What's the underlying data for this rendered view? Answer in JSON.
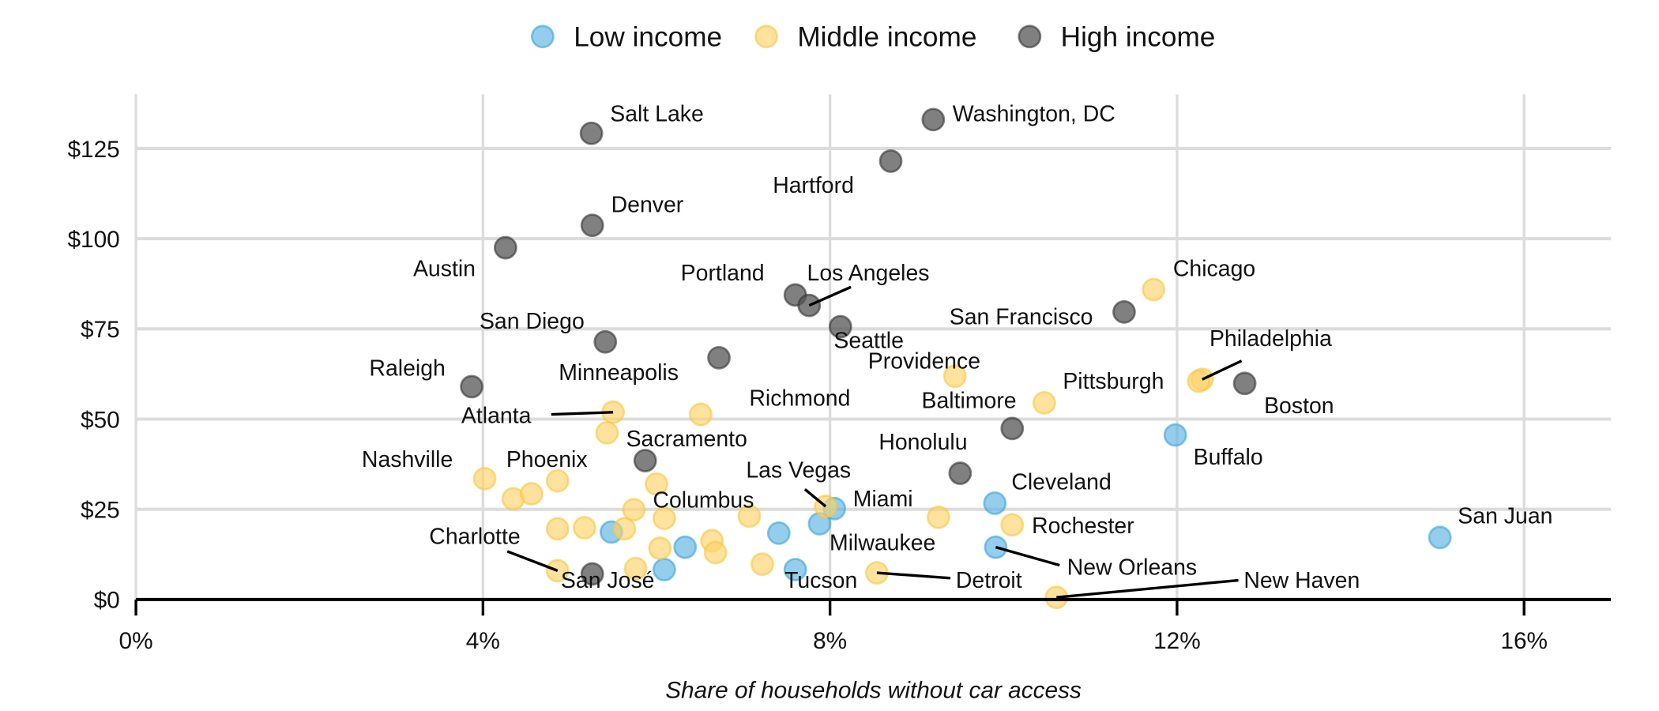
{
  "chart_data": {
    "type": "scatter",
    "title": "",
    "xlabel": "Share of households without car access",
    "ylabel": "",
    "xlim": [
      0,
      17
    ],
    "ylim": [
      0,
      140
    ],
    "x_ticks": [
      0,
      4,
      8,
      12,
      16
    ],
    "x_tick_labels": [
      "0%",
      "4%",
      "8%",
      "12%",
      "16%"
    ],
    "y_ticks": [
      0,
      25,
      50,
      75,
      100,
      125
    ],
    "y_tick_labels": [
      "$0",
      "$25",
      "$50",
      "$75",
      "$100",
      "$125"
    ],
    "grid": true,
    "legend_position": "top",
    "colors": {
      "Low income": "#5ab4e2",
      "Middle income": "#fdd36a",
      "High income": "#555555"
    },
    "series": [
      {
        "name": "Low income",
        "points": [
          {
            "name": "Buffalo",
            "x": 11.98,
            "y": 45.6
          },
          {
            "name": "San Juan",
            "x": 15.03,
            "y": 17.2
          },
          {
            "name": "Cleveland",
            "x": 9.9,
            "y": 26.7
          },
          {
            "name": "Miami",
            "x": 8.05,
            "y": 25.2
          },
          {
            "name": "Milwaukee",
            "x": 7.88,
            "y": 21.0
          },
          {
            "name": "New Orleans",
            "x": 9.91,
            "y": 14.5
          },
          {
            "name": "",
            "x": 7.41,
            "y": 18.4
          },
          {
            "name": "Tucson",
            "x": 7.6,
            "y": 8.3
          },
          {
            "name": "",
            "x": 5.48,
            "y": 18.7
          },
          {
            "name": "",
            "x": 6.33,
            "y": 14.5
          },
          {
            "name": "",
            "x": 6.09,
            "y": 8.3
          }
        ]
      },
      {
        "name": "Middle income",
        "points": [
          {
            "name": "Chicago",
            "x": 11.73,
            "y": 85.9
          },
          {
            "name": "Providence",
            "x": 9.44,
            "y": 61.9
          },
          {
            "name": "Philadelphia",
            "x": 12.29,
            "y": 61.0
          },
          {
            "name": "Pittsburgh",
            "x": 12.25,
            "y": 60.5
          },
          {
            "name": "Baltimore",
            "x": 10.47,
            "y": 54.5
          },
          {
            "name": "Atlanta",
            "x": 5.5,
            "y": 51.9
          },
          {
            "name": "Richmond",
            "x": 6.51,
            "y": 51.3
          },
          {
            "name": "",
            "x": 5.43,
            "y": 46.2
          },
          {
            "name": "Nashville",
            "x": 4.02,
            "y": 33.5
          },
          {
            "name": "Phoenix",
            "x": 4.86,
            "y": 32.9
          },
          {
            "name": "",
            "x": 4.35,
            "y": 27.9
          },
          {
            "name": "",
            "x": 4.56,
            "y": 29.3
          },
          {
            "name": "",
            "x": 6.0,
            "y": 32.0
          },
          {
            "name": "",
            "x": 5.74,
            "y": 24.9
          },
          {
            "name": "Columbus",
            "x": 6.09,
            "y": 22.5
          },
          {
            "name": "",
            "x": 7.07,
            "y": 23.1
          },
          {
            "name": "",
            "x": 4.86,
            "y": 19.6
          },
          {
            "name": "",
            "x": 5.17,
            "y": 19.9
          },
          {
            "name": "",
            "x": 5.63,
            "y": 19.6
          },
          {
            "name": "",
            "x": 6.04,
            "y": 14.2
          },
          {
            "name": "",
            "x": 6.64,
            "y": 16.3
          },
          {
            "name": "",
            "x": 6.68,
            "y": 13.0
          },
          {
            "name": "",
            "x": 7.22,
            "y": 9.8
          },
          {
            "name": "",
            "x": 5.76,
            "y": 8.6
          },
          {
            "name": "Charlotte",
            "x": 4.86,
            "y": 8.0
          },
          {
            "name": "Detroit",
            "x": 8.54,
            "y": 7.4
          },
          {
            "name": "Rochester",
            "x": 10.1,
            "y": 20.7
          },
          {
            "name": "",
            "x": 9.25,
            "y": 22.8
          },
          {
            "name": "New Haven",
            "x": 10.61,
            "y": 0.6
          },
          {
            "name": "Las Vegas",
            "x": 7.95,
            "y": 25.8
          }
        ]
      },
      {
        "name": "High income",
        "points": [
          {
            "name": "Salt Lake",
            "x": 5.25,
            "y": 129.2
          },
          {
            "name": "Washington, DC",
            "x": 9.19,
            "y": 133.0
          },
          {
            "name": "Hartford",
            "x": 8.7,
            "y": 121.5
          },
          {
            "name": "Denver",
            "x": 5.26,
            "y": 103.7
          },
          {
            "name": "Austin",
            "x": 4.26,
            "y": 97.5
          },
          {
            "name": "Portland",
            "x": 7.6,
            "y": 84.4
          },
          {
            "name": "Los Angeles",
            "x": 7.76,
            "y": 81.5
          },
          {
            "name": "Seattle",
            "x": 8.12,
            "y": 75.6
          },
          {
            "name": "San Francisco",
            "x": 11.39,
            "y": 79.7
          },
          {
            "name": "San Diego",
            "x": 5.41,
            "y": 71.4
          },
          {
            "name": "Minneapolis",
            "x": 6.72,
            "y": 67.0
          },
          {
            "name": "Raleigh",
            "x": 3.87,
            "y": 59.0
          },
          {
            "name": "Boston",
            "x": 12.78,
            "y": 59.9
          },
          {
            "name": "Honolulu",
            "x": 10.1,
            "y": 47.4
          },
          {
            "name": "",
            "x": 9.5,
            "y": 35.0
          },
          {
            "name": "Sacramento",
            "x": 5.87,
            "y": 38.5
          },
          {
            "name": "San José",
            "x": 5.26,
            "y": 7.1
          }
        ]
      }
    ]
  }
}
